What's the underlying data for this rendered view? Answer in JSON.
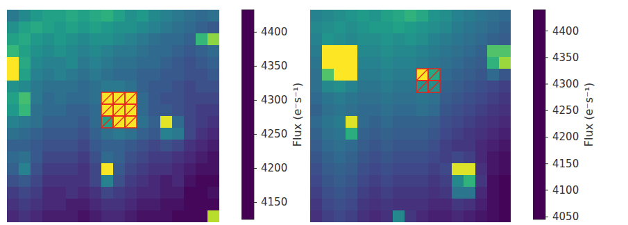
{
  "chart_data": [
    {
      "type": "heatmap",
      "tick_labels": false,
      "colorbar_label": "Flux (e⁻s⁻¹)",
      "colorbar_range": [
        4125,
        4433
      ],
      "colorbar_ticks": [
        4150,
        4200,
        4250,
        4300,
        4350,
        4400
      ],
      "aperture": [
        [
          7,
          8
        ],
        [
          7,
          9
        ],
        [
          7,
          10
        ],
        [
          8,
          8
        ],
        [
          8,
          9
        ],
        [
          8,
          10
        ],
        [
          9,
          8
        ],
        [
          9,
          9
        ],
        [
          9,
          10
        ]
      ],
      "cells": [
        [
          4250,
          4270,
          4290,
          4300,
          4300,
          4310,
          4300,
          4310,
          4320,
          4300,
          4280,
          4290,
          4270,
          4260,
          4250,
          4240,
          4230,
          4240
        ],
        [
          4280,
          4300,
          4310,
          4300,
          4290,
          4300,
          4290,
          4300,
          4290,
          4280,
          4280,
          4270,
          4260,
          4250,
          4240,
          4230,
          4220,
          4210
        ],
        [
          4300,
          4310,
          4290,
          4280,
          4290,
          4280,
          4270,
          4280,
          4280,
          4270,
          4260,
          4250,
          4240,
          4230,
          4230,
          4220,
          4330,
          4380
        ],
        [
          4330,
          4300,
          4280,
          4270,
          4280,
          4270,
          4260,
          4270,
          4260,
          4250,
          4250,
          4240,
          4230,
          4230,
          4220,
          4210,
          4220,
          4230
        ],
        [
          4440,
          4310,
          4270,
          4260,
          4260,
          4270,
          4250,
          4260,
          4250,
          4240,
          4240,
          4230,
          4230,
          4220,
          4210,
          4200,
          4210,
          4220
        ],
        [
          4440,
          4300,
          4260,
          4250,
          4260,
          4250,
          4240,
          4250,
          4240,
          4230,
          4230,
          4220,
          4220,
          4210,
          4210,
          4200,
          4200,
          4210
        ],
        [
          4280,
          4270,
          4250,
          4240,
          4240,
          4240,
          4230,
          4240,
          4250,
          4250,
          4240,
          4220,
          4210,
          4210,
          4200,
          4190,
          4200,
          4200
        ],
        [
          4300,
          4340,
          4250,
          4230,
          4240,
          4230,
          4230,
          4240,
          4430,
          4430,
          4430,
          4230,
          4210,
          4200,
          4200,
          4190,
          4190,
          4190
        ],
        [
          4290,
          4330,
          4240,
          4230,
          4230,
          4220,
          4220,
          4230,
          4430,
          4430,
          4430,
          4230,
          4210,
          4210,
          4200,
          4190,
          4180,
          4180
        ],
        [
          4260,
          4250,
          4240,
          4220,
          4220,
          4220,
          4210,
          4230,
          4300,
          4430,
          4430,
          4240,
          4220,
          4420,
          4230,
          4190,
          4180,
          4170
        ],
        [
          4240,
          4230,
          4220,
          4210,
          4210,
          4210,
          4200,
          4220,
          4240,
          4250,
          4240,
          4220,
          4210,
          4260,
          4250,
          4190,
          4170,
          4160
        ],
        [
          4220,
          4220,
          4210,
          4200,
          4200,
          4200,
          4190,
          4210,
          4220,
          4220,
          4210,
          4200,
          4190,
          4200,
          4190,
          4170,
          4160,
          4150
        ],
        [
          4230,
          4240,
          4210,
          4190,
          4190,
          4190,
          4180,
          4200,
          4230,
          4220,
          4200,
          4190,
          4180,
          4180,
          4170,
          4160,
          4150,
          4140
        ],
        [
          4220,
          4260,
          4200,
          4180,
          4180,
          4180,
          4170,
          4190,
          4430,
          4210,
          4190,
          4180,
          4170,
          4170,
          4160,
          4150,
          4140,
          4140
        ],
        [
          4200,
          4210,
          4190,
          4170,
          4170,
          4170,
          4170,
          4190,
          4260,
          4200,
          4180,
          4170,
          4160,
          4150,
          4160,
          4140,
          4130,
          4130
        ],
        [
          4180,
          4190,
          4180,
          4160,
          4160,
          4170,
          4160,
          4170,
          4190,
          4180,
          4170,
          4160,
          4160,
          4150,
          4150,
          4130,
          4130,
          4140
        ],
        [
          4170,
          4180,
          4170,
          4160,
          4160,
          4150,
          4150,
          4160,
          4170,
          4170,
          4160,
          4150,
          4150,
          4140,
          4140,
          4130,
          4130,
          4130
        ],
        [
          4160,
          4170,
          4160,
          4150,
          4150,
          4150,
          4140,
          4150,
          4160,
          4160,
          4150,
          4140,
          4140,
          4140,
          4130,
          4130,
          4130,
          4400
        ]
      ]
    },
    {
      "type": "heatmap",
      "tick_labels": false,
      "colorbar_label": "Flux (e⁻s⁻¹)",
      "colorbar_range": [
        4045,
        4440
      ],
      "colorbar_ticks": [
        4050,
        4100,
        4150,
        4200,
        4250,
        4300,
        4350,
        4400
      ],
      "aperture": [
        [
          5,
          9
        ],
        [
          5,
          10
        ],
        [
          6,
          9
        ],
        [
          6,
          10
        ]
      ],
      "cells": [
        [
          4220,
          4230,
          4240,
          4250,
          4260,
          4250,
          4270,
          4280,
          4300,
          4280,
          4250,
          4240,
          4220,
          4210,
          4200,
          4190,
          4180
        ],
        [
          4230,
          4240,
          4250,
          4240,
          4250,
          4260,
          4260,
          4270,
          4260,
          4250,
          4240,
          4230,
          4210,
          4200,
          4190,
          4180,
          4170
        ],
        [
          4220,
          4250,
          4240,
          4230,
          4240,
          4240,
          4250,
          4240,
          4250,
          4240,
          4220,
          4210,
          4200,
          4190,
          4180,
          4170,
          4160
        ],
        [
          4210,
          4440,
          4440,
          4440,
          4230,
          4230,
          4240,
          4230,
          4230,
          4220,
          4210,
          4200,
          4190,
          4180,
          4170,
          4330,
          4330
        ],
        [
          4200,
          4440,
          4440,
          4440,
          4220,
          4220,
          4230,
          4220,
          4220,
          4210,
          4200,
          4190,
          4180,
          4170,
          4160,
          4300,
          4380
        ],
        [
          4190,
          4330,
          4440,
          4440,
          4210,
          4210,
          4220,
          4210,
          4210,
          4440,
          4280,
          4180,
          4170,
          4160,
          4150,
          4180,
          4150
        ],
        [
          4190,
          4230,
          4240,
          4220,
          4200,
          4200,
          4210,
          4200,
          4200,
          4250,
          4240,
          4170,
          4160,
          4150,
          4140,
          4130,
          4120
        ],
        [
          4180,
          4200,
          4210,
          4200,
          4190,
          4190,
          4200,
          4190,
          4190,
          4200,
          4190,
          4160,
          4150,
          4140,
          4130,
          4120,
          4110
        ],
        [
          4170,
          4190,
          4200,
          4190,
          4180,
          4180,
          4190,
          4180,
          4180,
          4190,
          4180,
          4150,
          4140,
          4130,
          4120,
          4110,
          4100
        ],
        [
          4180,
          4200,
          4210,
          4420,
          4180,
          4170,
          4180,
          4170,
          4170,
          4170,
          4160,
          4140,
          4130,
          4120,
          4110,
          4100,
          4090
        ],
        [
          4170,
          4190,
          4200,
          4290,
          4170,
          4160,
          4170,
          4160,
          4160,
          4160,
          4150,
          4130,
          4120,
          4110,
          4100,
          4090,
          4080
        ],
        [
          4160,
          4180,
          4190,
          4180,
          4160,
          4150,
          4160,
          4150,
          4150,
          4150,
          4140,
          4120,
          4110,
          4110,
          4090,
          4080,
          4070
        ],
        [
          4150,
          4170,
          4180,
          4170,
          4150,
          4140,
          4150,
          4140,
          4140,
          4140,
          4130,
          4120,
          4130,
          4120,
          4090,
          4070,
          4060
        ],
        [
          4140,
          4160,
          4170,
          4160,
          4140,
          4130,
          4140,
          4130,
          4130,
          4130,
          4120,
          4130,
          4420,
          4420,
          4100,
          4070,
          4060
        ],
        [
          4130,
          4150,
          4160,
          4150,
          4130,
          4120,
          4130,
          4120,
          4120,
          4120,
          4110,
          4120,
          4230,
          4300,
          4110,
          4060,
          4050
        ],
        [
          4120,
          4140,
          4150,
          4140,
          4120,
          4110,
          4120,
          4110,
          4110,
          4110,
          4100,
          4110,
          4200,
          4200,
          4090,
          4060,
          4050
        ],
        [
          4110,
          4130,
          4140,
          4130,
          4110,
          4100,
          4110,
          4100,
          4100,
          4100,
          4090,
          4090,
          4110,
          4100,
          4080,
          4060,
          4050
        ],
        [
          4100,
          4120,
          4130,
          4120,
          4100,
          4090,
          4100,
          4230,
          4110,
          4090,
          4080,
          4080,
          4090,
          4080,
          4070,
          4060,
          4050
        ]
      ]
    }
  ]
}
